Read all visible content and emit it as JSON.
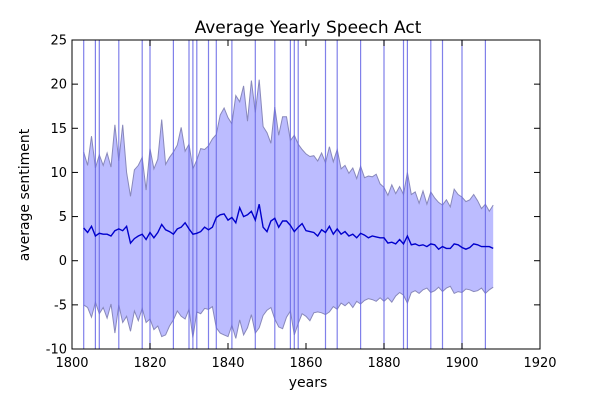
{
  "chart_data": {
    "type": "area",
    "title": "Average Yearly Speech Act",
    "xlabel": "years",
    "ylabel": "average sentiment",
    "xlim": [
      1800,
      1920
    ],
    "ylim": [
      -10,
      25
    ],
    "xticks": [
      1800,
      1820,
      1840,
      1860,
      1880,
      1900,
      1920
    ],
    "yticks": [
      -10,
      -5,
      0,
      5,
      10,
      15,
      20,
      25
    ],
    "grid": false,
    "colors": {
      "mean_line": "#0000cc",
      "band_fill": "#b8b8ff",
      "band_edge": "#8888bb",
      "vlines": "#6a6ae6"
    },
    "vertical_markers_x": [
      1803,
      1806,
      1807,
      1812,
      1818,
      1820,
      1826,
      1830,
      1831,
      1832,
      1835,
      1837,
      1841,
      1847,
      1852,
      1856,
      1857,
      1858,
      1865,
      1868,
      1874,
      1880,
      1885,
      1886,
      1892,
      1895,
      1900,
      1906
    ],
    "x": [
      1803,
      1804,
      1805,
      1806,
      1807,
      1808,
      1809,
      1810,
      1811,
      1812,
      1813,
      1814,
      1815,
      1816,
      1817,
      1818,
      1819,
      1820,
      1821,
      1822,
      1823,
      1824,
      1825,
      1826,
      1827,
      1828,
      1829,
      1830,
      1831,
      1832,
      1833,
      1834,
      1835,
      1836,
      1837,
      1838,
      1839,
      1840,
      1841,
      1842,
      1843,
      1844,
      1845,
      1846,
      1847,
      1848,
      1849,
      1850,
      1851,
      1852,
      1853,
      1854,
      1855,
      1856,
      1857,
      1858,
      1859,
      1860,
      1861,
      1862,
      1863,
      1864,
      1865,
      1866,
      1867,
      1868,
      1869,
      1870,
      1871,
      1872,
      1873,
      1874,
      1875,
      1876,
      1877,
      1878,
      1879,
      1880,
      1881,
      1882,
      1883,
      1884,
      1885,
      1886,
      1887,
      1888,
      1889,
      1890,
      1891,
      1892,
      1893,
      1894,
      1895,
      1896,
      1897,
      1898,
      1899,
      1900,
      1901,
      1902,
      1903,
      1904,
      1905,
      1906,
      1907,
      1908
    ],
    "series": [
      {
        "name": "",
        "role": "mean",
        "values": [
          3.7,
          3.2,
          3.9,
          2.8,
          3.1,
          3.0,
          3.0,
          2.8,
          3.4,
          3.6,
          3.4,
          3.9,
          2.0,
          2.5,
          2.8,
          3.0,
          2.4,
          3.2,
          2.6,
          3.2,
          4.1,
          3.5,
          3.3,
          3.0,
          3.6,
          3.8,
          4.3,
          3.6,
          3.0,
          3.1,
          3.3,
          3.8,
          3.5,
          3.8,
          4.9,
          5.2,
          5.3,
          4.6,
          4.9,
          4.3,
          6.0,
          5.0,
          5.2,
          5.6,
          4.6,
          6.4,
          3.8,
          3.3,
          4.5,
          4.8,
          3.8,
          4.5,
          4.5,
          4.0,
          3.3,
          3.8,
          4.2,
          3.4,
          3.3,
          3.2,
          2.8,
          3.5,
          3.2,
          3.9,
          3.0,
          3.6,
          3.0,
          3.3,
          2.8,
          3.0,
          2.6,
          3.1,
          2.9,
          2.6,
          2.8,
          2.7,
          2.6,
          2.6,
          2.0,
          2.1,
          1.9,
          2.4,
          1.9,
          2.8,
          1.8,
          1.9,
          1.7,
          1.8,
          1.6,
          1.9,
          1.8,
          1.3,
          1.6,
          1.4,
          1.4,
          1.9,
          1.8,
          1.5,
          1.3,
          1.5,
          1.9,
          1.8,
          1.6,
          1.6,
          1.6,
          1.4
        ]
      },
      {
        "name": "",
        "role": "upper",
        "values": [
          12.3,
          10.8,
          14.1,
          10.5,
          12.0,
          10.8,
          12.2,
          10.6,
          15.4,
          11.3,
          15.4,
          10.0,
          7.3,
          10.3,
          10.8,
          11.7,
          8.0,
          12.7,
          10.4,
          11.5,
          16.0,
          10.9,
          11.7,
          12.3,
          13.1,
          15.1,
          12.4,
          13.2,
          10.4,
          11.4,
          12.7,
          12.6,
          13.0,
          13.8,
          14.3,
          16.5,
          17.3,
          16.2,
          15.5,
          18.7,
          18.0,
          19.8,
          15.8,
          20.4,
          16.8,
          20.5,
          15.2,
          14.5,
          13.3,
          17.4,
          14.2,
          16.3,
          16.3,
          13.6,
          14.2,
          13.2,
          12.6,
          12.1,
          11.8,
          11.9,
          11.3,
          12.2,
          11.1,
          12.9,
          11.2,
          12.6,
          10.4,
          10.8,
          9.9,
          10.5,
          9.3,
          10.7,
          9.4,
          9.6,
          9.5,
          9.8,
          8.7,
          8.3,
          7.4,
          8.6,
          7.6,
          8.4,
          7.5,
          10.0,
          7.5,
          7.8,
          6.5,
          7.9,
          6.4,
          7.8,
          7.1,
          6.6,
          6.3,
          6.9,
          6.1,
          8.1,
          7.5,
          7.2,
          6.7,
          6.9,
          7.5,
          6.8,
          5.9,
          6.4,
          5.6,
          6.3
        ]
      },
      {
        "name": "",
        "role": "lower",
        "values": [
          -5.0,
          -5.3,
          -6.4,
          -4.7,
          -6.0,
          -5.3,
          -6.5,
          -4.9,
          -8.2,
          -5.0,
          -7.0,
          -6.3,
          -8.0,
          -5.7,
          -6.8,
          -5.4,
          -7.0,
          -6.6,
          -7.8,
          -7.4,
          -8.6,
          -8.4,
          -7.4,
          -6.7,
          -5.7,
          -6.3,
          -6.6,
          -5.5,
          -8.7,
          -5.8,
          -6.0,
          -5.4,
          -5.5,
          -5.2,
          -7.6,
          -8.2,
          -8.4,
          -8.6,
          -7.3,
          -8.8,
          -6.7,
          -8.4,
          -7.6,
          -6.1,
          -8.2,
          -7.6,
          -6.2,
          -5.6,
          -5.3,
          -6.6,
          -7.5,
          -7.7,
          -6.4,
          -5.7,
          -8.4,
          -7.1,
          -6.0,
          -6.3,
          -6.8,
          -5.9,
          -5.8,
          -5.9,
          -6.1,
          -5.8,
          -5.2,
          -5.5,
          -4.8,
          -5.1,
          -4.7,
          -5.3,
          -4.6,
          -4.9,
          -4.5,
          -4.3,
          -4.4,
          -4.6,
          -4.2,
          -4.6,
          -4.2,
          -4.7,
          -4.0,
          -3.6,
          -3.9,
          -4.8,
          -3.6,
          -3.4,
          -3.7,
          -3.3,
          -3.1,
          -3.6,
          -3.4,
          -3.0,
          -3.5,
          -3.1,
          -2.9,
          -3.7,
          -3.5,
          -3.6,
          -3.2,
          -3.3,
          -3.5,
          -3.4,
          -3.1,
          -3.7,
          -3.3,
          -3.0
        ]
      }
    ]
  }
}
